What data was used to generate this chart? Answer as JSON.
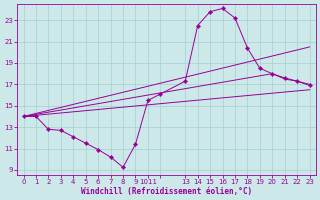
{
  "xlabel": "Windchill (Refroidissement éolien,°C)",
  "bg_color": "#cce8e8",
  "line_color": "#990099",
  "grid_color": "#aad4d4",
  "xlim": [
    -0.5,
    23.5
  ],
  "ylim": [
    8.5,
    24.5
  ],
  "xtick_labels": [
    "0",
    "1",
    "2",
    "3",
    "4",
    "5",
    "6",
    "7",
    "8",
    "9",
    "1011",
    "",
    "13",
    "14",
    "15",
    "16",
    "17",
    "18",
    "19",
    "20",
    "21",
    "22",
    "23"
  ],
  "xtick_positions": [
    0,
    1,
    2,
    3,
    4,
    5,
    6,
    7,
    8,
    9,
    10,
    11,
    13,
    14,
    15,
    16,
    17,
    18,
    19,
    20,
    21,
    22,
    23
  ],
  "ytick_positions": [
    9,
    11,
    13,
    15,
    17,
    19,
    21,
    23
  ],
  "curve": {
    "x": [
      0,
      1,
      2,
      3,
      4,
      5,
      6,
      7,
      8,
      9,
      10,
      11,
      13,
      14,
      15,
      16,
      17,
      18,
      19,
      20,
      21,
      22,
      23
    ],
    "y": [
      14.0,
      14.0,
      12.8,
      12.7,
      12.1,
      11.5,
      10.9,
      10.2,
      9.25,
      11.4,
      15.5,
      16.1,
      17.3,
      22.5,
      23.8,
      24.1,
      23.2,
      20.4,
      18.5,
      18.0,
      17.6,
      17.3,
      16.9
    ]
  },
  "straight_lines": [
    {
      "x": [
        0,
        20,
        21,
        22,
        23
      ],
      "y": [
        14.0,
        18.0,
        17.5,
        17.3,
        17.0
      ]
    },
    {
      "x": [
        0,
        23
      ],
      "y": [
        14.0,
        16.5
      ]
    },
    {
      "x": [
        0,
        23
      ],
      "y": [
        14.0,
        20.5
      ]
    }
  ]
}
